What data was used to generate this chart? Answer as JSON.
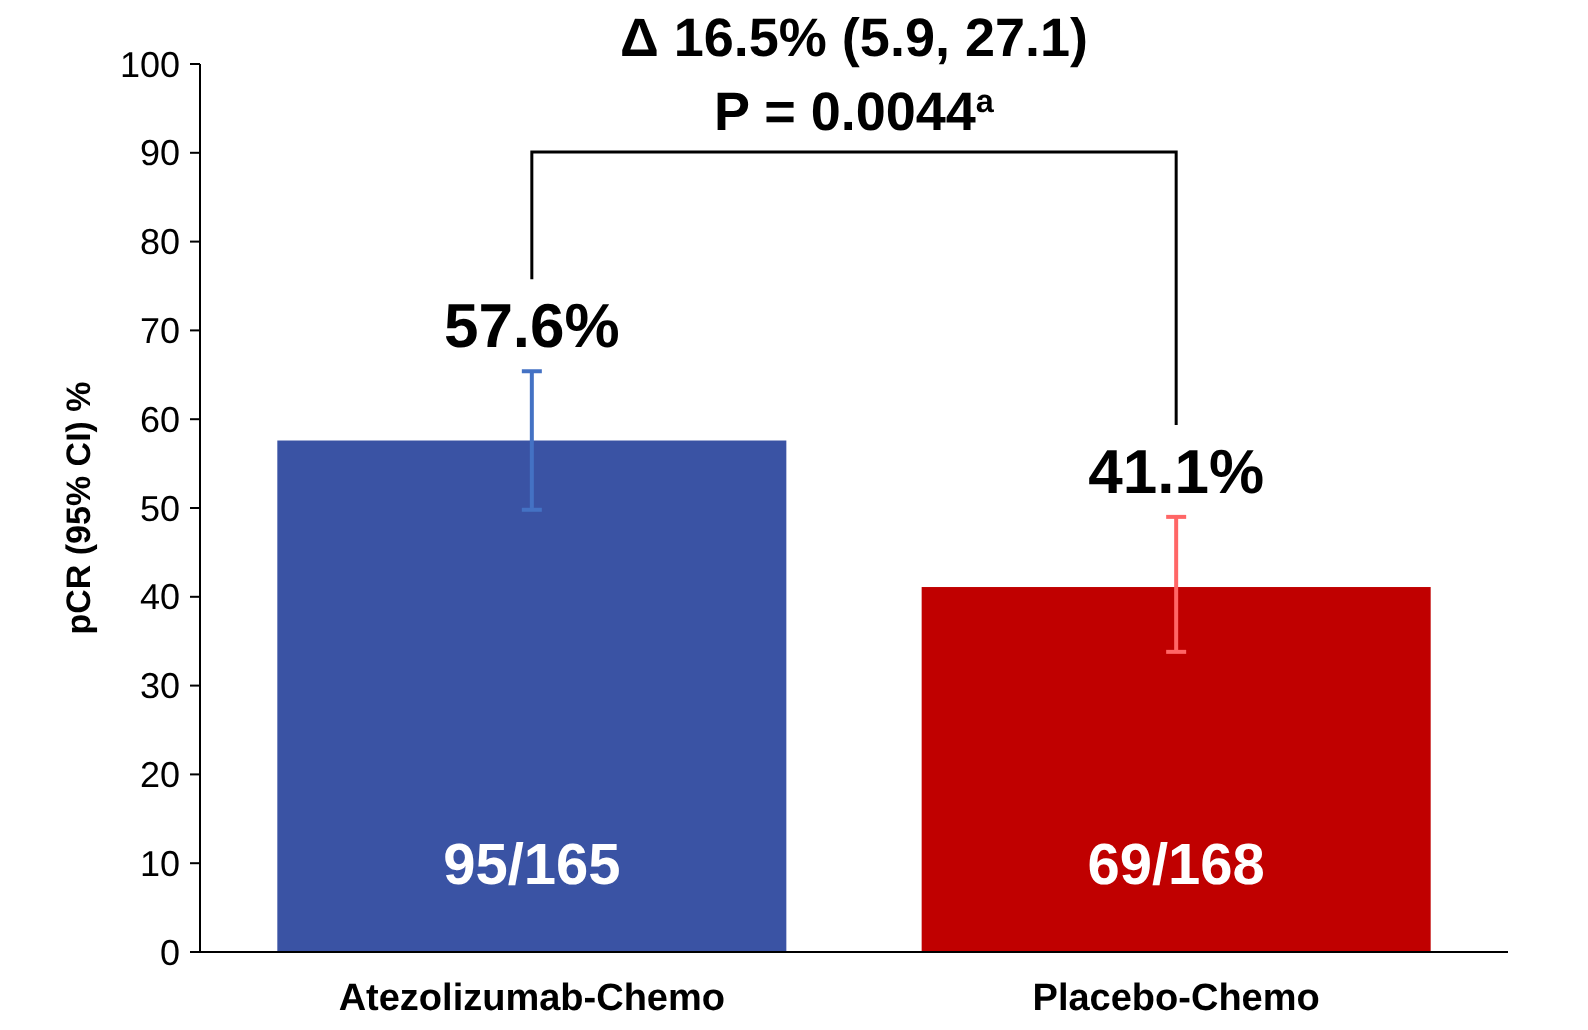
{
  "chart_data": {
    "type": "bar",
    "ylabel": "pCR (95% CI) %",
    "categories": [
      "Atezolizumab-Chemo",
      "Placebo-Chemo"
    ],
    "values": [
      57.6,
      41.1
    ],
    "colors": [
      "#3a53a4",
      "#c00000"
    ],
    "errors": [
      [
        49.8,
        65.4
      ],
      [
        33.8,
        49.0
      ]
    ],
    "value_labels": [
      "57.6%",
      "41.1%"
    ],
    "ylim": [
      0,
      100
    ],
    "yticks": [
      0,
      10,
      20,
      30,
      40,
      50,
      60,
      70,
      80,
      90,
      100
    ],
    "grid": false,
    "annotations": [
      "Δ 16.5% (5.9, 27.1)",
      "P = 0.0044$^{a}$",
      "95/165",
      "69/168"
    ]
  }
}
